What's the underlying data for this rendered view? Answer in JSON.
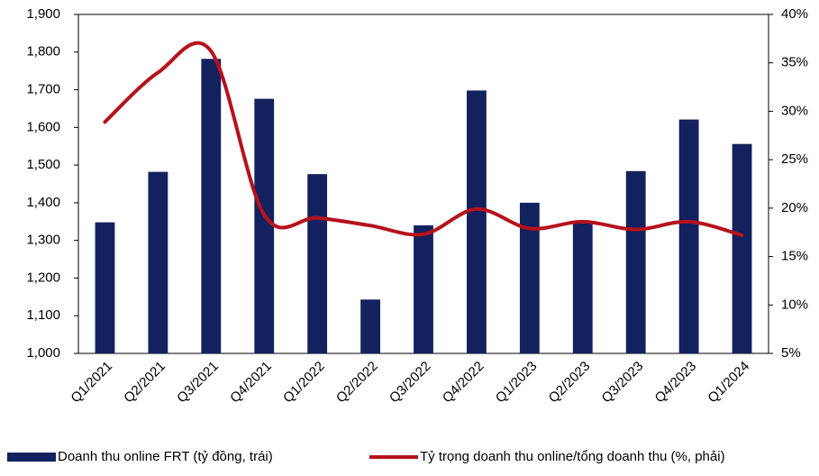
{
  "chart_data": {
    "type": "bar-line",
    "categories": [
      "Q1/2021",
      "Q2/2021",
      "Q3/2021",
      "Q4/2021",
      "Q1/2022",
      "Q2/2022",
      "Q3/2022",
      "Q4/2022",
      "Q1/2023",
      "Q2/2023",
      "Q3/2023",
      "Q4/2023",
      "Q1/2024"
    ],
    "series": [
      {
        "name": "Doanh thu online FRT (tỷ đồng, trái)",
        "type": "bar",
        "color": "#13215e",
        "values": [
          1348,
          1482,
          1782,
          1676,
          1476,
          1143,
          1340,
          1698,
          1400,
          1345,
          1484,
          1621,
          1556
        ]
      },
      {
        "name": "Tỷ trọng doanh thu online/tổng doanh thu (%, phải)",
        "type": "line",
        "axis": "y2",
        "color": "#b5121b",
        "values": [
          28.9,
          34.0,
          36.2,
          19.3,
          19.0,
          18.2,
          17.3,
          19.9,
          17.9,
          18.6,
          17.8,
          18.6,
          17.2
        ]
      }
    ],
    "ylim": [
      1000,
      1900
    ],
    "yticks": [
      {
        "value": 1000,
        "label": "1,000"
      },
      {
        "value": 1100,
        "label": "1,100"
      },
      {
        "value": 1200,
        "label": "1,200"
      },
      {
        "value": 1300,
        "label": "1,300"
      },
      {
        "value": 1400,
        "label": "1,400"
      },
      {
        "value": 1500,
        "label": "1,500"
      },
      {
        "value": 1600,
        "label": "1,600"
      },
      {
        "value": 1700,
        "label": "1,700"
      },
      {
        "value": 1800,
        "label": "1,800"
      },
      {
        "value": 1900,
        "label": "1,900"
      }
    ],
    "y2lim": [
      5,
      40
    ],
    "y2ticks": [
      {
        "value": 5,
        "label": "5%"
      },
      {
        "value": 10,
        "label": "10%"
      },
      {
        "value": 15,
        "label": "15%"
      },
      {
        "value": 20,
        "label": "20%"
      },
      {
        "value": 25,
        "label": "25%"
      },
      {
        "value": 30,
        "label": "30%"
      },
      {
        "value": 35,
        "label": "35%"
      },
      {
        "value": 40,
        "label": "40%"
      }
    ],
    "grid": false,
    "legend": "bottom"
  }
}
